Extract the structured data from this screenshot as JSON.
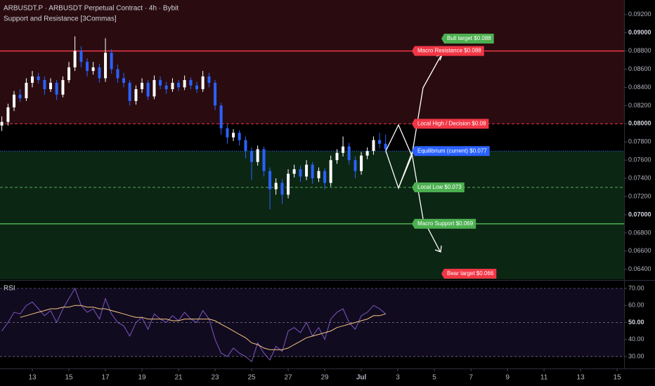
{
  "chart_data": [
    {
      "type": "candlestick",
      "title": "ARBUSDT.P · ARBUSDT Perpetual Contract · 4h · Bybit",
      "subtitle": "Support and Resistance [3Commas]",
      "x": [
        11.33,
        11.67,
        12,
        12.33,
        12.67,
        13,
        13.33,
        13.67,
        14,
        14.33,
        14.67,
        15,
        15.33,
        15.67,
        16,
        16.33,
        16.67,
        17,
        17.33,
        17.67,
        18,
        18.33,
        18.67,
        19,
        19.33,
        19.67,
        20,
        20.33,
        20.67,
        21,
        21.33,
        21.67,
        22,
        22.33,
        22.67,
        23,
        23.33,
        23.67,
        24,
        24.33,
        24.67,
        25,
        25.33,
        25.67,
        26,
        26.33,
        26.67,
        27,
        27.33,
        27.67,
        28,
        28.33,
        28.67,
        29,
        29.33,
        29.67,
        30,
        30.33,
        30.67,
        31,
        31.33,
        31.67,
        32,
        32.33
      ],
      "open": [
        0.0798,
        0.0802,
        0.0818,
        0.0832,
        0.0828,
        0.0845,
        0.0852,
        0.0848,
        0.0838,
        0.0845,
        0.0832,
        0.0848,
        0.0862,
        0.088,
        0.0868,
        0.0858,
        0.0862,
        0.085,
        0.0878,
        0.086,
        0.085,
        0.0845,
        0.0825,
        0.0838,
        0.0845,
        0.083,
        0.0848,
        0.0842,
        0.0838,
        0.0845,
        0.084,
        0.0848,
        0.0842,
        0.0838,
        0.0852,
        0.0845,
        0.082,
        0.0795,
        0.0785,
        0.079,
        0.0782,
        0.077,
        0.0758,
        0.0772,
        0.0748,
        0.0728,
        0.0735,
        0.0722,
        0.0745,
        0.075,
        0.0742,
        0.0755,
        0.074,
        0.0748,
        0.0735,
        0.076,
        0.0768,
        0.0775,
        0.076,
        0.0748,
        0.0765,
        0.077,
        0.0782,
        0.0778
      ],
      "high": [
        0.0808,
        0.0822,
        0.0836,
        0.0838,
        0.085,
        0.0858,
        0.0856,
        0.0852,
        0.085,
        0.0848,
        0.0852,
        0.0868,
        0.0896,
        0.0885,
        0.0872,
        0.0868,
        0.0866,
        0.0894,
        0.0882,
        0.0865,
        0.0856,
        0.0848,
        0.0842,
        0.085,
        0.0848,
        0.0853,
        0.0852,
        0.0846,
        0.085,
        0.0848,
        0.0853,
        0.0851,
        0.0846,
        0.0858,
        0.0856,
        0.0848,
        0.0823,
        0.0799,
        0.0794,
        0.0793,
        0.0786,
        0.0774,
        0.0776,
        0.0775,
        0.0752,
        0.074,
        0.0739,
        0.075,
        0.0755,
        0.0754,
        0.076,
        0.0758,
        0.0752,
        0.0751,
        0.0765,
        0.0772,
        0.0786,
        0.0779,
        0.0764,
        0.0769,
        0.0774,
        0.0786,
        0.079,
        0.0788
      ],
      "low": [
        0.0792,
        0.0798,
        0.0814,
        0.0824,
        0.0825,
        0.084,
        0.0844,
        0.0832,
        0.0835,
        0.0826,
        0.0829,
        0.0845,
        0.0858,
        0.0862,
        0.0852,
        0.0854,
        0.0845,
        0.0846,
        0.0855,
        0.0845,
        0.084,
        0.082,
        0.0821,
        0.0834,
        0.0826,
        0.0827,
        0.0838,
        0.0833,
        0.0835,
        0.0836,
        0.0837,
        0.0838,
        0.0834,
        0.0835,
        0.084,
        0.0815,
        0.0788,
        0.0778,
        0.0781,
        0.0776,
        0.0762,
        0.0738,
        0.0754,
        0.0742,
        0.0706,
        0.0722,
        0.0712,
        0.0718,
        0.0741,
        0.0736,
        0.0738,
        0.0734,
        0.0736,
        0.0728,
        0.0731,
        0.0756,
        0.0764,
        0.0755,
        0.074,
        0.0744,
        0.0761,
        0.0766,
        0.0773,
        0.0768
      ],
      "close": [
        0.0802,
        0.0818,
        0.0832,
        0.0828,
        0.0845,
        0.0852,
        0.0848,
        0.0838,
        0.0845,
        0.0832,
        0.0848,
        0.0862,
        0.088,
        0.0868,
        0.0858,
        0.0862,
        0.085,
        0.0878,
        0.086,
        0.085,
        0.0845,
        0.0825,
        0.0838,
        0.0845,
        0.083,
        0.0848,
        0.0842,
        0.0838,
        0.0845,
        0.084,
        0.0848,
        0.0842,
        0.0838,
        0.0852,
        0.0845,
        0.082,
        0.0795,
        0.0785,
        0.079,
        0.0782,
        0.077,
        0.0758,
        0.0772,
        0.0748,
        0.0728,
        0.0735,
        0.0722,
        0.0745,
        0.075,
        0.0742,
        0.0755,
        0.074,
        0.0748,
        0.0735,
        0.076,
        0.0768,
        0.0775,
        0.076,
        0.0748,
        0.0765,
        0.077,
        0.0782,
        0.0778,
        0.0772
      ],
      "up_color": "#ffffff",
      "down_color": "#2962ff",
      "xlim": [
        11.23,
        45.38
      ],
      "ylim": [
        0.0629,
        0.0936
      ],
      "xticks": [
        13,
        15,
        17,
        19,
        21,
        23,
        25,
        27,
        29,
        {
          "value": 31,
          "label": "Jul"
        },
        {
          "value": 33,
          "label": "3"
        },
        {
          "value": 35,
          "label": "5"
        },
        {
          "value": 37,
          "label": "7"
        },
        {
          "value": 39,
          "label": "9"
        },
        {
          "value": 41,
          "label": "11"
        },
        {
          "value": 43,
          "label": "13"
        },
        {
          "value": 45,
          "label": "15"
        }
      ],
      "yticks": [
        {
          "value": 0.092,
          "label": "0.09200"
        },
        {
          "value": 0.09,
          "label": "0.09000"
        },
        {
          "value": 0.088,
          "label": "0.08800"
        },
        {
          "value": 0.086,
          "label": "0.08600"
        },
        {
          "value": 0.084,
          "label": "0.08400"
        },
        {
          "value": 0.082,
          "label": "0.08200"
        },
        {
          "value": 0.08,
          "label": "0.08000"
        },
        {
          "value": 0.078,
          "label": "0.07800"
        },
        {
          "value": 0.076,
          "label": "0.07600"
        },
        {
          "value": 0.074,
          "label": "0.07400"
        },
        {
          "value": 0.072,
          "label": "0.07200"
        },
        {
          "value": 0.07,
          "label": "0.07000"
        },
        {
          "value": 0.068,
          "label": "0.06800"
        },
        {
          "value": 0.066,
          "label": "0.06600"
        },
        {
          "value": 0.064,
          "label": "0.06400"
        }
      ],
      "levels": [
        {
          "name": "Macro Resistance $0.088",
          "value": 0.088,
          "color": "#f23645",
          "style": "solid"
        },
        {
          "name": "Local High / Decision $0.08",
          "value": 0.08,
          "color": "#f23645",
          "style": "dashed"
        },
        {
          "name": "Equilibrium (current) $0.077",
          "value": 0.077,
          "color": "#2962ff",
          "style": "dotted"
        },
        {
          "name": "Local Low $0.073",
          "value": 0.073,
          "color": "#4caf50",
          "style": "dashed"
        },
        {
          "name": "Macro Support $0.069",
          "value": 0.069,
          "color": "#4caf50",
          "style": "solid"
        }
      ],
      "annotations": [
        {
          "text": "Bull target $0.088",
          "color": "#4caf50"
        },
        {
          "text": "Bear target $0.066",
          "color": "#f23645"
        }
      ]
    },
    {
      "type": "line",
      "title": "RSI",
      "ylim": [
        23,
        74.5
      ],
      "yticks": [
        {
          "value": 70,
          "label": "70.00"
        },
        {
          "value": 60,
          "label": "60.00"
        },
        {
          "value": 50,
          "label": "50.00"
        },
        {
          "value": 40,
          "label": "40.00"
        },
        {
          "value": 30,
          "label": "30.00"
        }
      ],
      "series": [
        {
          "color": "#7e57c2",
          "values": [
            45,
            50,
            56,
            55,
            60,
            62,
            58,
            54,
            57,
            50,
            58,
            64,
            70,
            60,
            56,
            58,
            52,
            64,
            55,
            50,
            48,
            42,
            50,
            53,
            46,
            55,
            52,
            50,
            54,
            51,
            56,
            52,
            50,
            57,
            52,
            40,
            32,
            30,
            35,
            32,
            30,
            27,
            38,
            32,
            28,
            36,
            33,
            45,
            47,
            44,
            50,
            42,
            47,
            40,
            52,
            56,
            58,
            50,
            46,
            54,
            56,
            60,
            58,
            55
          ]
        },
        {
          "color": "#f7c67f",
          "values": [
            null,
            null,
            null,
            53,
            54,
            55,
            56,
            57,
            58,
            58,
            59,
            59,
            60,
            60,
            59,
            59,
            58,
            58,
            57,
            56,
            55,
            54,
            53,
            53,
            52,
            52,
            52,
            52,
            51,
            51,
            52,
            52,
            52,
            52,
            52,
            51,
            49,
            47,
            45,
            43,
            41,
            38,
            37,
            35,
            34,
            34,
            34,
            35,
            37,
            39,
            41,
            42,
            43,
            44,
            45,
            47,
            48,
            49,
            50,
            51,
            52,
            54,
            54,
            55
          ]
        }
      ]
    }
  ]
}
